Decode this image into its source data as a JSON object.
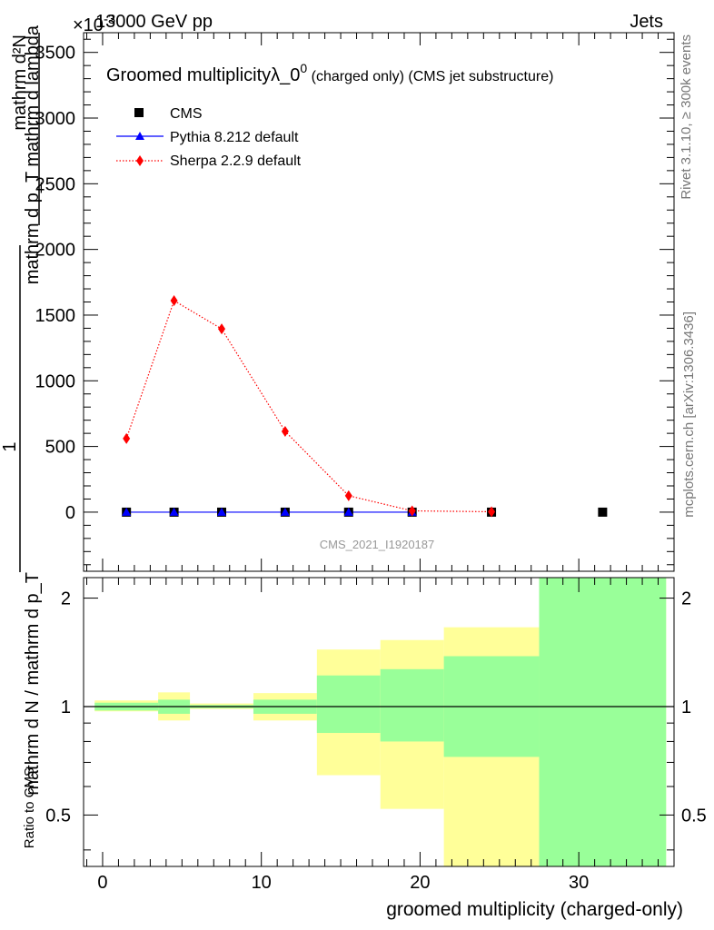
{
  "header": {
    "energy_label": "13000 GeV pp",
    "exponent_label": "×10",
    "exponent_power": "-3",
    "process_label": "Jets"
  },
  "side_labels": {
    "rivet": "Rivet 3.1.10, ≥ 300k events",
    "mcplots": "mcplots.cern.ch [arXiv:1306.3436]"
  },
  "chart_data": [
    {
      "type": "line",
      "panel": "main",
      "title": "Groomed multiplicityλ_0",
      "title_superscript": "0",
      "title_suffix": " (charged only) (CMS jet substructure)",
      "ylabel_line1": "mathrm d²N",
      "ylabel_line2": "mathrm d p_T mathrm d lambda",
      "ylabel_line3": "1",
      "ylabel_line4": "mathrm d N / mathrm d p_T",
      "watermark": "CMS_2021_I1920187",
      "xlim": [
        -1.2,
        36
      ],
      "ylim": [
        -450,
        3650
      ],
      "y_ticks": [
        0,
        500,
        1000,
        1500,
        2000,
        2500,
        3000,
        3500
      ],
      "y_tick_labels": [
        "0",
        "500",
        "1000",
        "1500",
        "2000",
        "2500",
        "3000",
        "3500"
      ],
      "legend_position": "top-left",
      "series": [
        {
          "name": "CMS",
          "style": "markers",
          "color": "#000000",
          "x": [
            1.5,
            4.5,
            7.5,
            11.5,
            15.5,
            19.5,
            24.5,
            31.5
          ],
          "values": [
            0,
            0,
            0,
            0,
            0,
            0,
            0,
            0
          ]
        },
        {
          "name": "Pythia 8.212 default",
          "style": "line-triangles",
          "color": "#0000ff",
          "x": [
            1.5,
            4.5,
            7.5,
            11.5,
            15.5,
            19.5
          ],
          "values": [
            0,
            0,
            0,
            0,
            0,
            0
          ]
        },
        {
          "name": "Sherpa 2.2.9 default",
          "style": "dotted-diamonds",
          "color": "#ff0000",
          "x": [
            1.5,
            4.5,
            7.5,
            11.5,
            15.5,
            19.5,
            24.5
          ],
          "values": [
            560,
            1610,
            1395,
            615,
            125,
            10,
            3
          ]
        }
      ]
    },
    {
      "type": "area",
      "panel": "ratio",
      "ylabel": "Ratio to CMS",
      "xlabel": "groomed multiplicity (charged-only)",
      "xlim": [
        -1.2,
        36
      ],
      "ylim": [
        0.36,
        2.28
      ],
      "log_y": true,
      "x_ticks": [
        0,
        10,
        20,
        30
      ],
      "x_tick_labels": [
        "0",
        "10",
        "20",
        "30"
      ],
      "y_ticks": [
        0.5,
        1,
        2
      ],
      "y_tick_labels": [
        "0.5",
        "1",
        "2"
      ],
      "reference_line": 1,
      "colors": {
        "inner_band": "#99ff99",
        "outer_band": "#ffff99"
      },
      "bins": [
        {
          "lo": -0.5,
          "hi": 3.5,
          "inner": [
            0.975,
            1.025
          ],
          "outer": [
            0.97,
            1.04
          ]
        },
        {
          "lo": 3.5,
          "hi": 5.5,
          "inner": [
            0.955,
            1.045
          ],
          "outer": [
            0.915,
            1.095
          ]
        },
        {
          "lo": 5.5,
          "hi": 9.5,
          "inner": [
            0.99,
            1.01
          ],
          "outer": [
            0.985,
            1.02
          ]
        },
        {
          "lo": 9.5,
          "hi": 13.5,
          "inner": [
            0.955,
            1.045
          ],
          "outer": [
            0.915,
            1.09
          ]
        },
        {
          "lo": 13.5,
          "hi": 17.5,
          "inner": [
            0.845,
            1.22
          ],
          "outer": [
            0.645,
            1.44
          ]
        },
        {
          "lo": 17.5,
          "hi": 21.5,
          "inner": [
            0.8,
            1.27
          ],
          "outer": [
            0.52,
            1.53
          ]
        },
        {
          "lo": 21.5,
          "hi": 27.5,
          "inner": [
            0.725,
            1.38
          ],
          "outer": [
            0.3,
            1.66
          ]
        },
        {
          "lo": 27.5,
          "hi": 35.5,
          "inner": [
            0.3,
            3.0
          ],
          "outer": [
            0.3,
            3.0
          ]
        }
      ]
    }
  ]
}
